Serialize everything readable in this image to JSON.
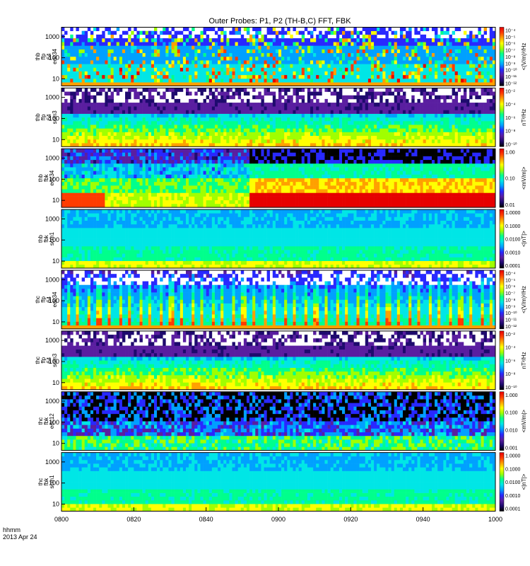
{
  "title": "Outer Probes: P1, P2 (TH-B,C) FFT, FBK",
  "footer": {
    "time_label": "hhmm",
    "date_label": "2013 Apr 24"
  },
  "time_axis": {
    "ticks": [
      "0800",
      "0820",
      "0840",
      "0900",
      "0920",
      "0940",
      "1000"
    ],
    "range": [
      "08:00",
      "10:00"
    ]
  },
  "colors": {
    "colormap": [
      "#000000",
      "#1e0a6e",
      "#5a1ea0",
      "#2828ff",
      "#00a0ff",
      "#00e6e6",
      "#00ff8c",
      "#a0ff00",
      "#ffff00",
      "#ffa000",
      "#ff3c00",
      "#e60000"
    ]
  },
  "chart_data": {
    "type": "heatmap",
    "panels": [
      {
        "ylabel": [
          "thb",
          "ffp",
          "64",
          "edc34"
        ],
        "y_ticks": [
          "1000",
          "100",
          "10"
        ],
        "y_scale": "log",
        "colorbar_label": "<(V/m)²/Hz",
        "colorbar_ticks": [
          "10⁻⁴",
          "10⁻⁵",
          "10⁻⁶",
          "10⁻⁷",
          "10⁻⁸",
          "10⁻⁹",
          "10⁻¹⁰",
          "10⁻¹¹",
          "10⁻¹²"
        ],
        "pattern": "sparse-spikes"
      },
      {
        "ylabel": [
          "thb",
          "ffp",
          "64",
          "scm3"
        ],
        "y_ticks": [
          "1000",
          "100",
          "10"
        ],
        "y_scale": "log",
        "colorbar_label": "nT²/Hz",
        "colorbar_ticks": [
          "10⁻²",
          "10⁻⁴",
          "10⁻⁶",
          "10⁻⁸",
          "10⁻¹⁰"
        ],
        "pattern": "noise-bands"
      },
      {
        "ylabel": [
          "thb",
          "fbk",
          "edc34"
        ],
        "y_ticks": [
          "1000",
          "100",
          "10"
        ],
        "y_scale": "log",
        "colorbar_label": "<mV/m|>",
        "colorbar_ticks": [
          "1.00",
          "0.10",
          "0.01"
        ],
        "pattern": "fbk-hot"
      },
      {
        "ylabel": [
          "thb",
          "fbk",
          "scm1"
        ],
        "y_ticks": [
          "1000",
          "100",
          "10"
        ],
        "y_scale": "log",
        "colorbar_label": "<|nT|>",
        "colorbar_ticks": [
          "1.0000",
          "0.1000",
          "0.0100",
          "0.0010",
          "0.0001"
        ],
        "pattern": "fbk-cool"
      },
      {
        "ylabel": [
          "thc",
          "ffp",
          "64",
          "edc34"
        ],
        "y_ticks": [
          "1000",
          "100",
          "10"
        ],
        "y_scale": "log",
        "colorbar_label": "<(V/m)²/Hz",
        "colorbar_ticks": [
          "10⁻⁴",
          "10⁻⁵",
          "10⁻⁶",
          "10⁻⁷",
          "10⁻⁸",
          "10⁻⁹",
          "10⁻¹⁰",
          "10⁻¹¹",
          "10⁻¹²"
        ],
        "pattern": "periodic-spikes"
      },
      {
        "ylabel": [
          "thc",
          "ffp",
          "64",
          "scm3"
        ],
        "y_ticks": [
          "1000",
          "100",
          "10"
        ],
        "y_scale": "log",
        "colorbar_label": "nT²/Hz",
        "colorbar_ticks": [
          "10⁻²",
          "10⁻⁴",
          "10⁻⁶",
          "10⁻⁸",
          "10⁻¹⁰"
        ],
        "pattern": "noise-bands"
      },
      {
        "ylabel": [
          "thc",
          "fbk",
          "edc12"
        ],
        "y_ticks": [
          "1000",
          "100",
          "10"
        ],
        "y_scale": "log",
        "colorbar_label": "<mV/m|>",
        "colorbar_ticks": [
          "1.000",
          "0.100",
          "0.010",
          "0.001"
        ],
        "pattern": "fbk-dark"
      },
      {
        "ylabel": [
          "thc",
          "fbk",
          "scm1"
        ],
        "y_ticks": [
          "1000",
          "100",
          "10"
        ],
        "y_scale": "log",
        "colorbar_label": "<|nT|>",
        "colorbar_ticks": [
          "1.0000",
          "0.1000",
          "0.0100",
          "0.0010",
          "0.0001"
        ],
        "pattern": "fbk-cool"
      }
    ]
  }
}
